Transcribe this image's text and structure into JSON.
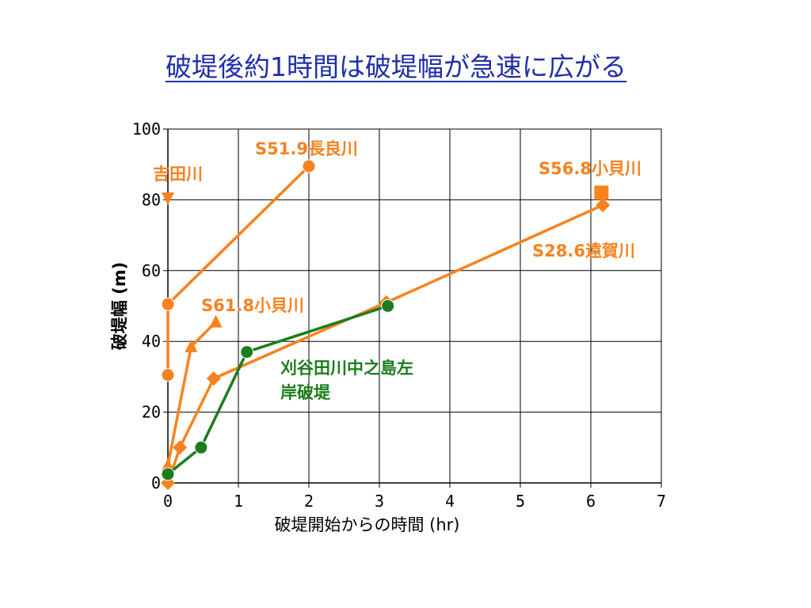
{
  "title": "破堤後約1時間は破堤幅が急速に広がる",
  "chart_data": {
    "type": "line",
    "xlabel": "破堤開始からの時間 (hr)",
    "ylabel": "破堤幅 (m)",
    "xlim": [
      0,
      7
    ],
    "ylim": [
      0,
      100
    ],
    "xticks": [
      "0",
      "1",
      "2",
      "3",
      "4",
      "5",
      "6",
      "7"
    ],
    "yticks": [
      "0",
      "20",
      "40",
      "60",
      "80",
      "100"
    ],
    "grid": true,
    "series": [
      {
        "name": "S51.9長良川",
        "color": "#f7821e",
        "marker": "circle",
        "x": [
          0,
          0,
          2.0
        ],
        "y": [
          30.5,
          50.5,
          89.5
        ]
      },
      {
        "name": "吉田川",
        "color": "#f7821e",
        "marker": "triangle-down",
        "x": [
          0
        ],
        "y": [
          80.5
        ]
      },
      {
        "name": "S56.8小貝川",
        "color": "#f7821e",
        "marker": "square",
        "x": [
          6.15
        ],
        "y": [
          82
        ]
      },
      {
        "name": "S28.6遠賀川",
        "color": "#f7821e",
        "marker": "diamond",
        "x": [
          0,
          0.17,
          0.65,
          3.1,
          6.17
        ],
        "y": [
          0,
          10,
          29.5,
          51,
          78.5
        ]
      },
      {
        "name": "S61.8小貝川",
        "color": "#f7821e",
        "marker": "triangle-up",
        "x": [
          0,
          0.33,
          0.68
        ],
        "y": [
          5,
          38.5,
          45.5
        ]
      },
      {
        "name": "刈谷田川中之島左岸破堤",
        "color": "#1c7d1c",
        "marker": "circle",
        "x": [
          0,
          0.47,
          1.12,
          3.12
        ],
        "y": [
          2.5,
          10,
          37,
          50
        ]
      }
    ],
    "annotations": [
      {
        "text": "S51.9長良川",
        "color": "#f7821e"
      },
      {
        "text": "吉田川",
        "color": "#f7821e"
      },
      {
        "text": "S56.8小貝川",
        "color": "#f7821e"
      },
      {
        "text": "S28.6遠賀川",
        "color": "#f7821e"
      },
      {
        "text": "S61.8小貝川",
        "color": "#f7821e"
      },
      {
        "text": "刈谷田川中之島左",
        "color": "#1c7d1c"
      },
      {
        "text": "岸破堤",
        "color": "#1c7d1c"
      }
    ]
  }
}
